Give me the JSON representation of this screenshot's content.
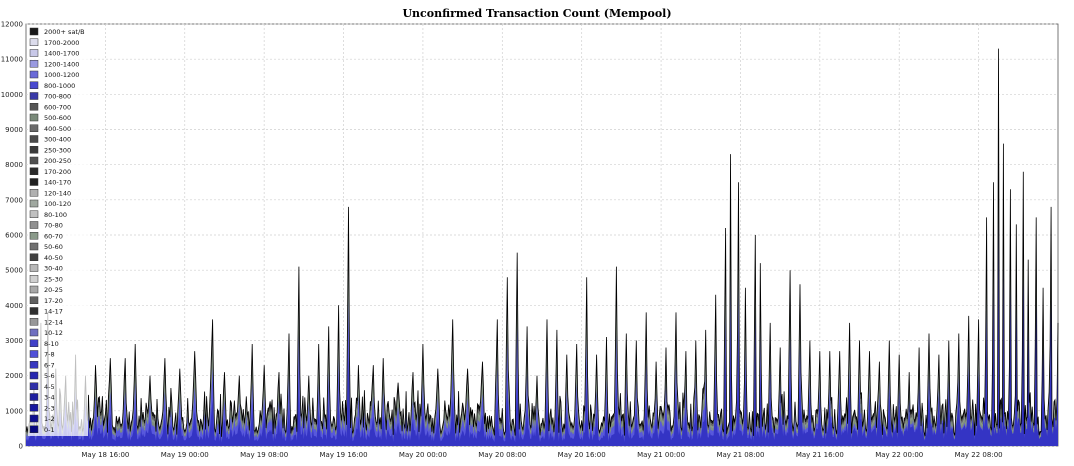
{
  "chart_data": {
    "type": "area",
    "title": "Unconfirmed Transaction Count (Mempool)",
    "xlabel": "",
    "ylabel": "",
    "ylim": [
      0,
      12000
    ],
    "y_ticks": [
      0,
      1000,
      2000,
      3000,
      4000,
      5000,
      6000,
      7000,
      8000,
      9000,
      10000,
      11000,
      12000
    ],
    "y_tick_labels": [
      "0",
      "1000",
      "2000",
      "3000",
      "4000",
      "5000",
      "6000",
      "7000",
      "8000",
      "9000",
      "10000",
      "11000",
      "12000"
    ],
    "x_range_hours": [
      0,
      104
    ],
    "x_ticks": [
      {
        "hours": 8,
        "label": "May 18 16:00"
      },
      {
        "hours": 16,
        "label": "May 19 00:00"
      },
      {
        "hours": 24,
        "label": "May 19 08:00"
      },
      {
        "hours": 32,
        "label": "May 19 16:00"
      },
      {
        "hours": 40,
        "label": "May 20 00:00"
      },
      {
        "hours": 48,
        "label": "May 20 08:00"
      },
      {
        "hours": 56,
        "label": "May 20 16:00"
      },
      {
        "hours": 64,
        "label": "May 21 00:00"
      },
      {
        "hours": 72,
        "label": "May 21 08:00"
      },
      {
        "hours": 80,
        "label": "May 21 16:00"
      },
      {
        "hours": 88,
        "label": "May 22 00:00"
      },
      {
        "hours": 96,
        "label": "May 22 08:00"
      }
    ],
    "legend_position": "top-left",
    "legend": [
      {
        "label": "2000+ sat/B",
        "color": "#1a1a1a"
      },
      {
        "label": "1700-2000",
        "color": "#dcdcec"
      },
      {
        "label": "1400-1700",
        "color": "#c8c8e8"
      },
      {
        "label": "1200-1400",
        "color": "#9a9ae0"
      },
      {
        "label": "1000-1200",
        "color": "#6a6ad8"
      },
      {
        "label": "800-1000",
        "color": "#4a4ad0"
      },
      {
        "label": "700-800",
        "color": "#3a3aa8"
      },
      {
        "label": "600-700",
        "color": "#555555"
      },
      {
        "label": "500-600",
        "color": "#7a8a7a"
      },
      {
        "label": "400-500",
        "color": "#6a6a6a"
      },
      {
        "label": "300-400",
        "color": "#4a4a4a"
      },
      {
        "label": "250-300",
        "color": "#3a3a3a"
      },
      {
        "label": "200-250",
        "color": "#505050"
      },
      {
        "label": "170-200",
        "color": "#2a2a2a"
      },
      {
        "label": "140-170",
        "color": "#202020"
      },
      {
        "label": "120-140",
        "color": "#b0b0b0"
      },
      {
        "label": "100-120",
        "color": "#a0a8a0"
      },
      {
        "label": "80-100",
        "color": "#c0c0c0"
      },
      {
        "label": "70-80",
        "color": "#909090"
      },
      {
        "label": "60-70",
        "color": "#8a9a8a"
      },
      {
        "label": "50-60",
        "color": "#707070"
      },
      {
        "label": "40-50",
        "color": "#404040"
      },
      {
        "label": "30-40",
        "color": "#b8b8b8"
      },
      {
        "label": "25-30",
        "color": "#d0d0d0"
      },
      {
        "label": "20-25",
        "color": "#a8a8a8"
      },
      {
        "label": "17-20",
        "color": "#606060"
      },
      {
        "label": "14-17",
        "color": "#303030"
      },
      {
        "label": "12-14",
        "color": "#989898"
      },
      {
        "label": "10-12",
        "color": "#7070c0"
      },
      {
        "label": "8-10",
        "color": "#4040c8"
      },
      {
        "label": "7-8",
        "color": "#5050d8"
      },
      {
        "label": "6-7",
        "color": "#3838c0"
      },
      {
        "label": "5-6",
        "color": "#2828b0"
      },
      {
        "label": "4-5",
        "color": "#3030a8"
      },
      {
        "label": "3-4",
        "color": "#2020a0"
      },
      {
        "label": "2-3",
        "color": "#1818a0"
      },
      {
        "label": "1-2",
        "color": "#101090"
      },
      {
        "label": "0-1",
        "color": "#080880"
      }
    ],
    "series_peaks": [
      {
        "hours": 0.0,
        "total": 400
      },
      {
        "hours": 0.8,
        "total": 1800
      },
      {
        "hours": 1.5,
        "total": 3500
      },
      {
        "hours": 2.2,
        "total": 3800
      },
      {
        "hours": 3.0,
        "total": 2200
      },
      {
        "hours": 4.0,
        "total": 2000
      },
      {
        "hours": 5.0,
        "total": 2600
      },
      {
        "hours": 6.0,
        "total": 2000
      },
      {
        "hours": 7.0,
        "total": 2300
      },
      {
        "hours": 8.5,
        "total": 2500
      },
      {
        "hours": 10.0,
        "total": 2500
      },
      {
        "hours": 11.0,
        "total": 2900
      },
      {
        "hours": 12.5,
        "total": 2000
      },
      {
        "hours": 14.0,
        "total": 2500
      },
      {
        "hours": 15.5,
        "total": 2200
      },
      {
        "hours": 17.0,
        "total": 2700
      },
      {
        "hours": 18.8,
        "total": 3600
      },
      {
        "hours": 20.0,
        "total": 2100
      },
      {
        "hours": 21.5,
        "total": 2000
      },
      {
        "hours": 22.8,
        "total": 2900
      },
      {
        "hours": 24.0,
        "total": 2300
      },
      {
        "hours": 25.5,
        "total": 2100
      },
      {
        "hours": 26.5,
        "total": 3200
      },
      {
        "hours": 27.5,
        "total": 5100
      },
      {
        "hours": 28.5,
        "total": 2000
      },
      {
        "hours": 29.5,
        "total": 2900
      },
      {
        "hours": 30.5,
        "total": 3400
      },
      {
        "hours": 31.5,
        "total": 4000
      },
      {
        "hours": 32.5,
        "total": 6800
      },
      {
        "hours": 33.5,
        "total": 2300
      },
      {
        "hours": 35.0,
        "total": 2300
      },
      {
        "hours": 36.0,
        "total": 2500
      },
      {
        "hours": 37.5,
        "total": 1800
      },
      {
        "hours": 39.0,
        "total": 2100
      },
      {
        "hours": 40.0,
        "total": 2900
      },
      {
        "hours": 41.5,
        "total": 2200
      },
      {
        "hours": 43.0,
        "total": 3600
      },
      {
        "hours": 44.5,
        "total": 2200
      },
      {
        "hours": 46.0,
        "total": 2400
      },
      {
        "hours": 47.5,
        "total": 3600
      },
      {
        "hours": 48.5,
        "total": 4800
      },
      {
        "hours": 49.5,
        "total": 5500
      },
      {
        "hours": 50.5,
        "total": 3400
      },
      {
        "hours": 51.5,
        "total": 2000
      },
      {
        "hours": 52.5,
        "total": 3600
      },
      {
        "hours": 53.5,
        "total": 3300
      },
      {
        "hours": 54.5,
        "total": 2600
      },
      {
        "hours": 55.5,
        "total": 2900
      },
      {
        "hours": 56.5,
        "total": 4800
      },
      {
        "hours": 57.5,
        "total": 2600
      },
      {
        "hours": 58.5,
        "total": 3100
      },
      {
        "hours": 59.5,
        "total": 5100
      },
      {
        "hours": 60.5,
        "total": 3200
      },
      {
        "hours": 61.5,
        "total": 3000
      },
      {
        "hours": 62.5,
        "total": 3800
      },
      {
        "hours": 63.5,
        "total": 2400
      },
      {
        "hours": 64.5,
        "total": 2800
      },
      {
        "hours": 65.5,
        "total": 3800
      },
      {
        "hours": 66.5,
        "total": 2700
      },
      {
        "hours": 67.5,
        "total": 3000
      },
      {
        "hours": 68.5,
        "total": 3300
      },
      {
        "hours": 69.5,
        "total": 4300
      },
      {
        "hours": 70.5,
        "total": 6200
      },
      {
        "hours": 71.0,
        "total": 8300
      },
      {
        "hours": 71.8,
        "total": 7500
      },
      {
        "hours": 72.5,
        "total": 4500
      },
      {
        "hours": 73.5,
        "total": 6000
      },
      {
        "hours": 74.0,
        "total": 5200
      },
      {
        "hours": 75.0,
        "total": 3500
      },
      {
        "hours": 76.0,
        "total": 2800
      },
      {
        "hours": 77.0,
        "total": 5000
      },
      {
        "hours": 78.0,
        "total": 4600
      },
      {
        "hours": 79.0,
        "total": 3000
      },
      {
        "hours": 80.0,
        "total": 2700
      },
      {
        "hours": 81.0,
        "total": 2700
      },
      {
        "hours": 82.0,
        "total": 2700
      },
      {
        "hours": 83.0,
        "total": 3500
      },
      {
        "hours": 84.0,
        "total": 3000
      },
      {
        "hours": 85.0,
        "total": 2700
      },
      {
        "hours": 86.0,
        "total": 2400
      },
      {
        "hours": 87.0,
        "total": 3000
      },
      {
        "hours": 88.0,
        "total": 2600
      },
      {
        "hours": 89.0,
        "total": 2100
      },
      {
        "hours": 90.0,
        "total": 2800
      },
      {
        "hours": 91.0,
        "total": 3200
      },
      {
        "hours": 92.0,
        "total": 2600
      },
      {
        "hours": 93.0,
        "total": 3000
      },
      {
        "hours": 94.0,
        "total": 3200
      },
      {
        "hours": 95.0,
        "total": 3700
      },
      {
        "hours": 96.0,
        "total": 3600
      },
      {
        "hours": 96.8,
        "total": 6500
      },
      {
        "hours": 97.5,
        "total": 7500
      },
      {
        "hours": 98.0,
        "total": 11300
      },
      {
        "hours": 98.5,
        "total": 8600
      },
      {
        "hours": 99.2,
        "total": 7300
      },
      {
        "hours": 99.8,
        "total": 6300
      },
      {
        "hours": 100.5,
        "total": 7800
      },
      {
        "hours": 101.0,
        "total": 5300
      },
      {
        "hours": 101.8,
        "total": 6500
      },
      {
        "hours": 102.5,
        "total": 4500
      },
      {
        "hours": 103.3,
        "total": 6800
      },
      {
        "hours": 104.0,
        "total": 3500
      }
    ]
  }
}
